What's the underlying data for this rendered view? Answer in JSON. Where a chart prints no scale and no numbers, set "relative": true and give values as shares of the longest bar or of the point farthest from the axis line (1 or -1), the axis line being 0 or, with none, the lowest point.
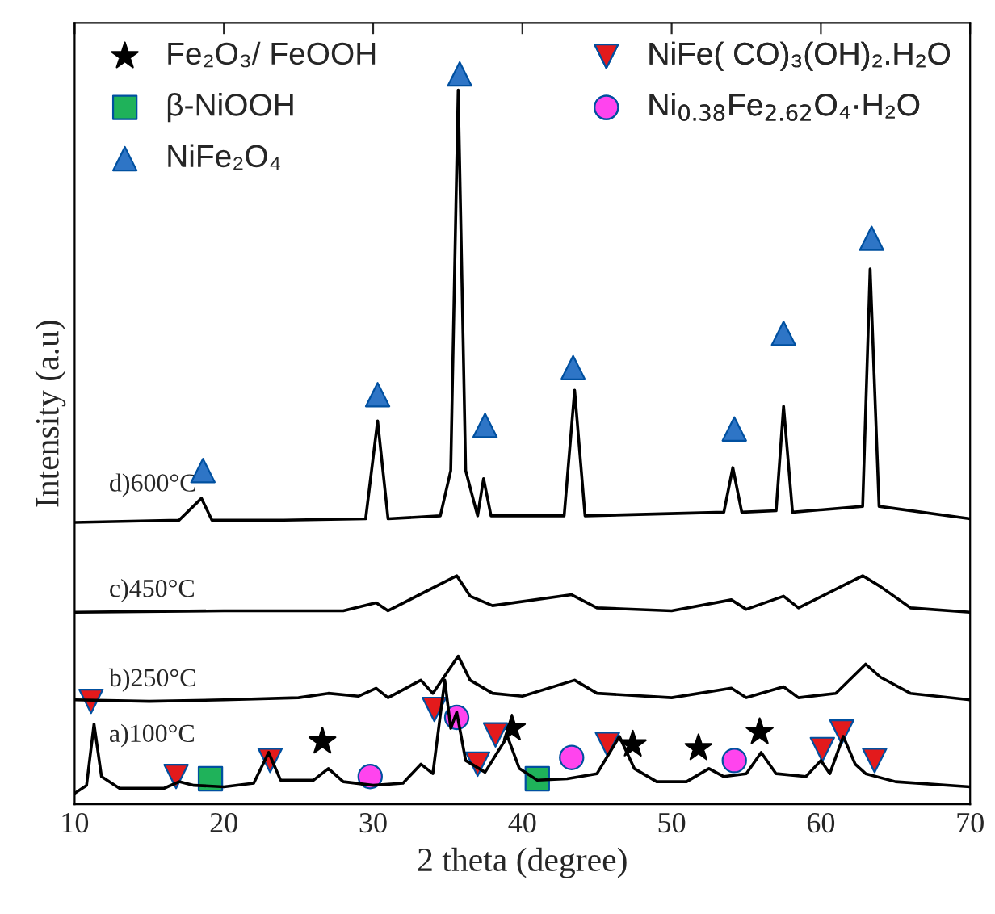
{
  "chart_data": {
    "type": "line",
    "relative": true,
    "xlabel": "2 theta (degree)",
    "ylabel": "Intensity (a.u)",
    "xlim": [
      10,
      70
    ],
    "xticks": [
      10,
      20,
      30,
      40,
      50,
      60,
      70
    ],
    "legend": "top",
    "grid": false,
    "series": [
      {
        "name": "a)100°C",
        "color": "#000000",
        "x": [
          10,
          10.8,
          11.3,
          11.8,
          13,
          16,
          17,
          18,
          20,
          22,
          23,
          23.8,
          26,
          27,
          28,
          30,
          32,
          33.2,
          34,
          34.8,
          35.2,
          35.6,
          36.2,
          37.5,
          39,
          39.8,
          41,
          43,
          45,
          46.5,
          47.5,
          49,
          51,
          52.5,
          53.5,
          55,
          56,
          57,
          59,
          60,
          60.6,
          61.5,
          62.3,
          63,
          65,
          70
        ],
        "values": [
          0.015,
          0.026,
          0.11,
          0.038,
          0.022,
          0.022,
          0.031,
          0.026,
          0.024,
          0.029,
          0.071,
          0.033,
          0.033,
          0.049,
          0.031,
          0.026,
          0.029,
          0.055,
          0.042,
          0.17,
          0.104,
          0.126,
          0.06,
          0.044,
          0.093,
          0.049,
          0.033,
          0.035,
          0.042,
          0.093,
          0.049,
          0.031,
          0.031,
          0.049,
          0.038,
          0.042,
          0.071,
          0.042,
          0.038,
          0.06,
          0.042,
          0.093,
          0.055,
          0.042,
          0.031,
          0.024
        ]
      },
      {
        "name": "b)250°C",
        "color": "#000000",
        "x": [
          10,
          15,
          20,
          25,
          27,
          29,
          30.2,
          31,
          33.2,
          34,
          35.7,
          36.5,
          38,
          40,
          43.5,
          45,
          50,
          54,
          55,
          57.5,
          58.5,
          61,
          63,
          64,
          66,
          70
        ],
        "values": [
          0.143,
          0.141,
          0.143,
          0.146,
          0.152,
          0.148,
          0.159,
          0.146,
          0.17,
          0.152,
          0.203,
          0.17,
          0.152,
          0.148,
          0.17,
          0.152,
          0.146,
          0.159,
          0.146,
          0.161,
          0.146,
          0.152,
          0.192,
          0.174,
          0.152,
          0.143
        ]
      },
      {
        "name": "c)450°C",
        "color": "#000000",
        "x": [
          10,
          20,
          28,
          30.2,
          31,
          35.6,
          36.5,
          38,
          43.3,
          45,
          50,
          54,
          55,
          57.5,
          58.5,
          62.8,
          64,
          66,
          70
        ],
        "values": [
          0.263,
          0.265,
          0.265,
          0.276,
          0.265,
          0.313,
          0.285,
          0.272,
          0.287,
          0.269,
          0.265,
          0.28,
          0.267,
          0.285,
          0.269,
          0.313,
          0.298,
          0.269,
          0.263
        ]
      },
      {
        "name": "d)600°C",
        "color": "#000000",
        "x": [
          10,
          17,
          18.5,
          19.2,
          24,
          29.5,
          30.3,
          31,
          34.5,
          35.2,
          35.7,
          36.2,
          37,
          37.4,
          37.9,
          42.8,
          43.5,
          44.2,
          53.5,
          54.1,
          54.7,
          57,
          57.5,
          58.1,
          62.8,
          63.3,
          63.9,
          70
        ],
        "values": [
          0.386,
          0.389,
          0.419,
          0.389,
          0.389,
          0.391,
          0.525,
          0.391,
          0.395,
          0.457,
          0.978,
          0.457,
          0.395,
          0.446,
          0.395,
          0.395,
          0.567,
          0.395,
          0.4,
          0.461,
          0.4,
          0.402,
          0.545,
          0.4,
          0.408,
          0.733,
          0.408,
          0.391
        ]
      },
      {
        "type": "scatter",
        "name": "Fe₂O₃/ FeOOH",
        "marker": "star",
        "color": "#000000",
        "x": [
          26.6,
          39.3,
          47.4,
          51.8,
          55.9
        ],
        "values": [
          0.086,
          0.104,
          0.082,
          0.077,
          0.099
        ]
      },
      {
        "type": "scatter",
        "name": "β-NiOOH",
        "marker": "square",
        "color": "#1fb25a",
        "x": [
          19.1,
          41.0
        ],
        "values": [
          0.035,
          0.035
        ]
      },
      {
        "type": "scatter",
        "name": "NiFe₂O₄",
        "marker": "triangle",
        "color": "#2e75c6",
        "x": [
          18.6,
          30.3,
          35.8,
          37.5,
          43.4,
          54.2,
          57.5,
          63.4
        ],
        "values": [
          0.457,
          0.561,
          1.0,
          0.519,
          0.598,
          0.514,
          0.645,
          0.775
        ]
      },
      {
        "type": "scatter",
        "name": "NiFe( CO)₃(OH)₂.H₂O",
        "marker": "triangle_down",
        "color": "#e31a1c",
        "x": [
          11.1,
          16.8,
          23.1,
          34.1,
          37.0,
          38.2,
          45.7,
          60.1,
          61.4,
          63.6
        ],
        "values": [
          0.141,
          0.038,
          0.06,
          0.13,
          0.055,
          0.095,
          0.082,
          0.075,
          0.099,
          0.06
        ]
      },
      {
        "type": "scatter",
        "name": "Ni$_{0.38}$Fe$_{2.62}$O₄·H₂O",
        "marker": "circle",
        "color": "#ff44ee",
        "x": [
          29.8,
          35.6,
          43.3,
          54.2
        ],
        "values": [
          0.038,
          0.119,
          0.064,
          0.06
        ]
      }
    ]
  }
}
